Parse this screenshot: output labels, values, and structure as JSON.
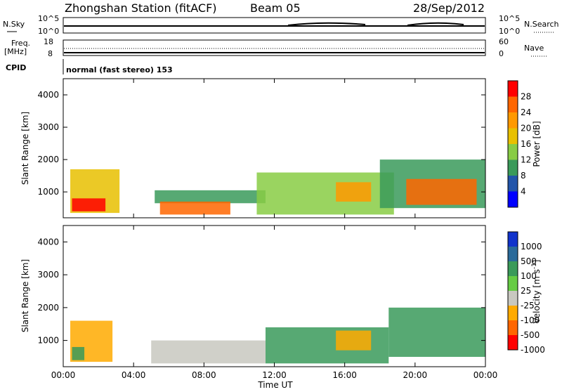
{
  "header": {
    "station": "Zhongshan Station (fitACF)",
    "beam": "Beam 05",
    "date": "28/Sep/2012"
  },
  "top_panels": {
    "nsky_label": "N.Sky",
    "nsky_ticks": [
      "10^5",
      "10^0"
    ],
    "nsearch_label": "N.Search",
    "nsearch_ticks": [
      "10^5",
      "10^0"
    ],
    "freq_label": "Freq.",
    "freq_unit": "[MHz]",
    "freq_ticks": [
      "18",
      "8"
    ],
    "nave_label": "Nave",
    "nave_ticks": [
      "60",
      "0"
    ],
    "cpid_label": "CPID",
    "cpid_text": "normal (fast stereo) 153"
  },
  "axes": {
    "ylabel": "Slant Range [km]",
    "xlabel": "Time UT",
    "y_ticks": [
      "1000",
      "2000",
      "3000",
      "4000"
    ],
    "x_ticks": [
      "00:00",
      "04:00",
      "08:00",
      "12:00",
      "16:00",
      "20:00",
      "00:00"
    ]
  },
  "power_scale": {
    "label": "Power [dB]",
    "ticks": [
      "28",
      "24",
      "20",
      "16",
      "12",
      "8",
      "4"
    ],
    "colors": [
      "#ff0000",
      "#ff6600",
      "#ff9900",
      "#e8c000",
      "#88cc44",
      "#3a9a5a",
      "#2255aa",
      "#0000ff"
    ]
  },
  "velocity_scale": {
    "label": "Velocity [m s",
    "exp": "-1",
    "label_end": "]",
    "ticks": [
      "1000",
      "500",
      "100",
      "25",
      "-25",
      "-100",
      "-500",
      "-1000"
    ],
    "colors": [
      "#1133cc",
      "#2a6a9a",
      "#3a9a5a",
      "#66cc44",
      "#c8c8c0",
      "#ffaa00",
      "#ff6600",
      "#ff0000"
    ]
  },
  "chart_data": [
    {
      "type": "heatmap",
      "title": "Power",
      "ylabel": "Slant Range [km]",
      "xlabel": "Time UT",
      "xlim": [
        0,
        24
      ],
      "ylim": [
        200,
        4500
      ],
      "colorbar": "Power [dB]",
      "regions": [
        {
          "t0": 0.4,
          "t1": 3.2,
          "r0": 350,
          "r1": 1700,
          "v": 16
        },
        {
          "t0": 0.5,
          "t1": 2.4,
          "r0": 400,
          "r1": 800,
          "v": 28
        },
        {
          "t0": 5.2,
          "t1": 11.5,
          "r0": 650,
          "r1": 1050,
          "v": 8
        },
        {
          "t0": 5.5,
          "t1": 9.5,
          "r0": 300,
          "r1": 700,
          "v": 24
        },
        {
          "t0": 11.0,
          "t1": 18.8,
          "r0": 300,
          "r1": 1600,
          "v": 12
        },
        {
          "t0": 15.5,
          "t1": 17.5,
          "r0": 700,
          "r1": 1300,
          "v": 22
        },
        {
          "t0": 18.0,
          "t1": 24.0,
          "r0": 500,
          "r1": 2000,
          "v": 10
        },
        {
          "t0": 19.5,
          "t1": 23.5,
          "r0": 600,
          "r1": 1400,
          "v": 26
        }
      ]
    },
    {
      "type": "heatmap",
      "title": "Velocity",
      "ylabel": "Slant Range [km]",
      "xlabel": "Time UT",
      "xlim": [
        0,
        24
      ],
      "ylim": [
        200,
        4500
      ],
      "colorbar": "Velocity [m s-1]",
      "regions": [
        {
          "t0": 0.4,
          "t1": 2.8,
          "r0": 350,
          "r1": 1600,
          "v": -100
        },
        {
          "t0": 0.5,
          "t1": 1.2,
          "r0": 400,
          "r1": 800,
          "v": 100
        },
        {
          "t0": 5.0,
          "t1": 11.5,
          "r0": 300,
          "r1": 1000,
          "v": 0
        },
        {
          "t0": 11.5,
          "t1": 18.5,
          "r0": 300,
          "r1": 1400,
          "v": 100
        },
        {
          "t0": 15.5,
          "t1": 17.5,
          "r0": 700,
          "r1": 1300,
          "v": -100
        },
        {
          "t0": 18.5,
          "t1": 24.0,
          "r0": 500,
          "r1": 2000,
          "v": 100
        }
      ]
    }
  ]
}
